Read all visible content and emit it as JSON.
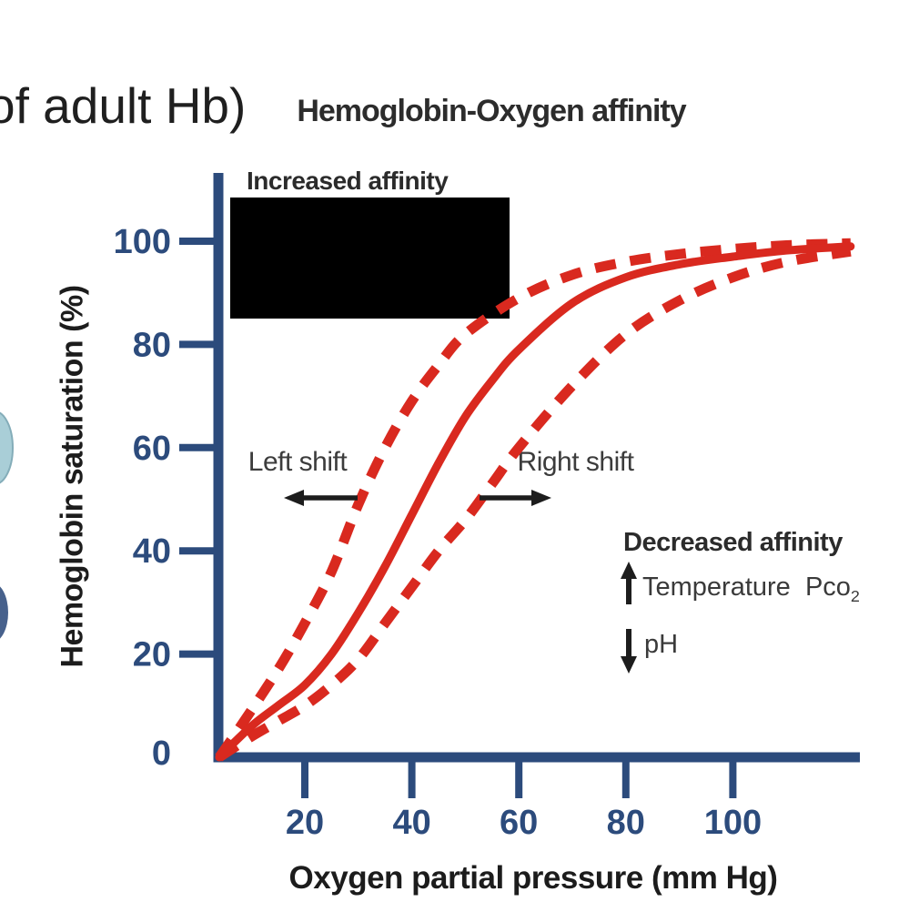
{
  "header": {
    "partial_text": "of adult Hb)"
  },
  "side_fragments": {
    "light_blob_color": "#a9ced7",
    "light_blob_border": "#84adb9",
    "dark_blob_color": "#47618c"
  },
  "redaction": {
    "color": "#000000"
  },
  "chart_data": {
    "type": "line",
    "title": "Hemoglobin-Oxygen affinity",
    "xlabel": "Oxygen partial pressure (mm Hg)",
    "ylabel": "Hemoglobin saturation (%)",
    "xlim": [
      0,
      124
    ],
    "ylim": [
      0,
      110
    ],
    "x_ticks": [
      20,
      40,
      60,
      80,
      100
    ],
    "y_ticks": [
      0,
      20,
      40,
      60,
      80,
      100
    ],
    "grid": false,
    "legend": "none",
    "colors": {
      "curve_red": "#d9291f",
      "axis_navy": "#2c4b7c",
      "arrow_black": "#1d1d1d"
    },
    "annotations": {
      "increased_affinity": "Increased affinity",
      "decreased_affinity": "Decreased affinity",
      "left_shift": "Left shift",
      "right_shift": "Right shift",
      "temperature": "Temperature",
      "pco2_base": "Pco",
      "pco2_subscript": "2",
      "ph": "pH"
    },
    "series": [
      {
        "name": "Left-shifted curve (increased affinity)",
        "style": "dashed",
        "points": [
          [
            4,
            0
          ],
          [
            8,
            6
          ],
          [
            15,
            17
          ],
          [
            20,
            26
          ],
          [
            25,
            36
          ],
          [
            30,
            49
          ],
          [
            35,
            60
          ],
          [
            40,
            69
          ],
          [
            45,
            76
          ],
          [
            50,
            82
          ],
          [
            60,
            89
          ],
          [
            70,
            93.5
          ],
          [
            80,
            96
          ],
          [
            90,
            97.5
          ],
          [
            100,
            98.5
          ],
          [
            110,
            99.2
          ],
          [
            122,
            99.6
          ]
        ]
      },
      {
        "name": "Normal curve",
        "style": "solid",
        "points": [
          [
            4,
            0
          ],
          [
            10,
            6
          ],
          [
            15,
            10
          ],
          [
            20,
            14
          ],
          [
            25,
            20
          ],
          [
            30,
            28
          ],
          [
            35,
            37
          ],
          [
            40,
            47
          ],
          [
            45,
            57
          ],
          [
            50,
            66
          ],
          [
            55,
            73
          ],
          [
            60,
            79
          ],
          [
            70,
            88
          ],
          [
            80,
            93
          ],
          [
            90,
            95.5
          ],
          [
            100,
            97
          ],
          [
            110,
            98.2
          ],
          [
            122,
            99
          ]
        ]
      },
      {
        "name": "Right-shifted curve (decreased affinity)",
        "style": "dashed",
        "points": [
          [
            4,
            0
          ],
          [
            10,
            4
          ],
          [
            15,
            7
          ],
          [
            20,
            10
          ],
          [
            25,
            14
          ],
          [
            30,
            19
          ],
          [
            35,
            26
          ],
          [
            40,
            33
          ],
          [
            45,
            40
          ],
          [
            50,
            46
          ],
          [
            55,
            53
          ],
          [
            60,
            60
          ],
          [
            70,
            72
          ],
          [
            80,
            82
          ],
          [
            90,
            88.5
          ],
          [
            100,
            93
          ],
          [
            110,
            96
          ],
          [
            122,
            98
          ]
        ]
      }
    ]
  }
}
